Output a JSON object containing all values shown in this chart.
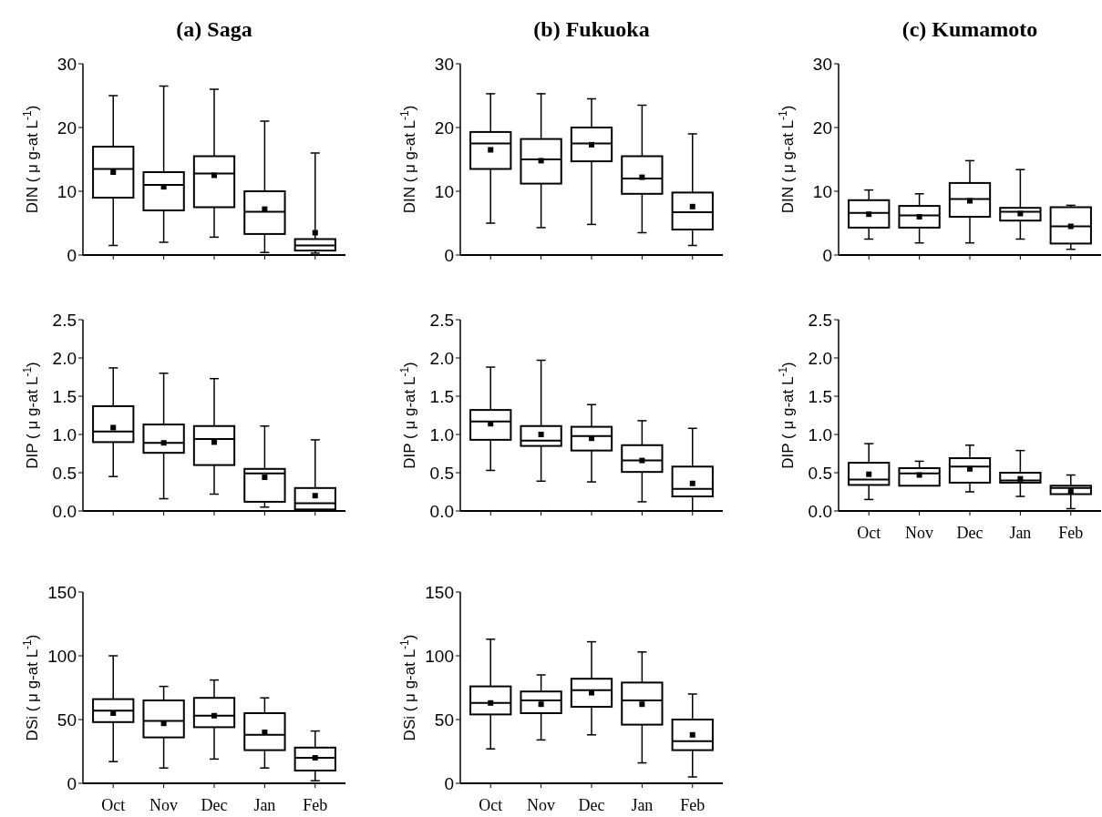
{
  "chart_data": [
    {
      "type": "box",
      "title": "(a) Saga",
      "ylabel": "DIN ( μ g-at L$^{-1}$)",
      "categories": [
        null,
        null,
        null,
        null,
        null
      ],
      "ylim": [
        0,
        30
      ],
      "yticks": [
        0,
        10,
        20,
        30
      ],
      "color": "#000000",
      "boxes": [
        {
          "low": 1.5,
          "q1": 9,
          "median": 13.5,
          "q3": 17,
          "high": 25,
          "mean": 13
        },
        {
          "low": 2,
          "q1": 7,
          "median": 11,
          "q3": 13,
          "high": 26.5,
          "mean": 10.7
        },
        {
          "low": 2.8,
          "q1": 7.5,
          "median": 12.8,
          "q3": 15.5,
          "high": 26,
          "mean": 12.5
        },
        {
          "low": 0.4,
          "q1": 3.3,
          "median": 6.8,
          "q3": 10,
          "high": 21,
          "mean": 7.2
        },
        {
          "low": 0.3,
          "q1": 0.7,
          "median": 1.5,
          "q3": 2.5,
          "high": 16,
          "mean": 3.5
        }
      ]
    },
    {
      "type": "box",
      "title": "(b) Fukuoka",
      "ylabel": "DIN ( μ g-at L$^{-1}$)",
      "categories": [
        null,
        null,
        null,
        null,
        null
      ],
      "ylim": [
        0,
        30
      ],
      "yticks": [
        0,
        10,
        20,
        30
      ],
      "color": "#000000",
      "boxes": [
        {
          "low": 5,
          "q1": 13.5,
          "median": 17.5,
          "q3": 19.3,
          "high": 25.3,
          "mean": 16.5
        },
        {
          "low": 4.3,
          "q1": 11.2,
          "median": 15,
          "q3": 18.2,
          "high": 25.3,
          "mean": 14.8
        },
        {
          "low": 4.8,
          "q1": 14.7,
          "median": 17.5,
          "q3": 20,
          "high": 24.5,
          "mean": 17.3
        },
        {
          "low": 3.5,
          "q1": 9.6,
          "median": 12,
          "q3": 15.5,
          "high": 23.5,
          "mean": 12.2
        },
        {
          "low": 1.5,
          "q1": 4,
          "median": 6.7,
          "q3": 9.8,
          "high": 19,
          "mean": 7.6
        }
      ]
    },
    {
      "type": "box",
      "title": "(c) Kumamoto",
      "ylabel": "DIN ( μ g-at L$^{-1}$)",
      "categories": [
        null,
        null,
        null,
        null,
        null
      ],
      "ylim": [
        0,
        30
      ],
      "yticks": [
        0,
        10,
        20,
        30
      ],
      "color": "#000000",
      "boxes": [
        {
          "low": 2.5,
          "q1": 4.3,
          "median": 6.6,
          "q3": 8.6,
          "high": 10.2,
          "mean": 6.4
        },
        {
          "low": 1.9,
          "q1": 4.3,
          "median": 6.2,
          "q3": 7.7,
          "high": 9.6,
          "mean": 6
        },
        {
          "low": 1.9,
          "q1": 6,
          "median": 8.8,
          "q3": 11.3,
          "high": 14.8,
          "mean": 8.5
        },
        {
          "low": 2.5,
          "q1": 5.4,
          "median": 6.8,
          "q3": 7.4,
          "high": 13.4,
          "mean": 6.5
        },
        {
          "low": 0.9,
          "q1": 1.8,
          "median": 4.5,
          "q3": 7.5,
          "high": 7.8,
          "mean": 4.5
        }
      ]
    },
    {
      "type": "box",
      "ylabel": "DIP ( μ g-at L$^{-1}$)",
      "categories": [
        null,
        null,
        null,
        null,
        null
      ],
      "ylim": [
        0,
        2.5
      ],
      "yticks": [
        {
          "value": 0,
          "label": "0.0"
        },
        {
          "value": 0.5,
          "label": "0.5"
        },
        {
          "value": 1,
          "label": "1.0"
        },
        {
          "value": 1.5,
          "label": "1.5"
        },
        {
          "value": 2,
          "label": "2.0"
        },
        {
          "value": 2.5,
          "label": "2.5"
        }
      ],
      "color": "#000000",
      "boxes": [
        {
          "low": 0.45,
          "q1": 0.9,
          "median": 1.04,
          "q3": 1.37,
          "high": 1.87,
          "mean": 1.09
        },
        {
          "low": 0.16,
          "q1": 0.76,
          "median": 0.89,
          "q3": 1.13,
          "high": 1.8,
          "mean": 0.89
        },
        {
          "low": 0.22,
          "q1": 0.6,
          "median": 0.94,
          "q3": 1.11,
          "high": 1.73,
          "mean": 0.9
        },
        {
          "low": 0.05,
          "q1": 0.12,
          "median": 0.49,
          "q3": 0.55,
          "high": 1.11,
          "mean": 0.44
        },
        {
          "low": 0,
          "q1": 0.02,
          "median": 0.1,
          "q3": 0.3,
          "high": 0.93,
          "mean": 0.2
        }
      ]
    },
    {
      "type": "box",
      "ylabel": "DIP ( μ g-at L$^{-1}$)",
      "categories": [
        null,
        null,
        null,
        null,
        null
      ],
      "ylim": [
        0,
        2.5
      ],
      "yticks": [
        {
          "value": 0,
          "label": "0.0"
        },
        {
          "value": 0.5,
          "label": "0.5"
        },
        {
          "value": 1,
          "label": "1.0"
        },
        {
          "value": 1.5,
          "label": "1.5"
        },
        {
          "value": 2,
          "label": "2.0"
        },
        {
          "value": 2.5,
          "label": "2.5"
        }
      ],
      "color": "#000000",
      "boxes": [
        {
          "low": 0.53,
          "q1": 0.93,
          "median": 1.17,
          "q3": 1.32,
          "high": 1.88,
          "mean": 1.14
        },
        {
          "low": 0.39,
          "q1": 0.85,
          "median": 0.92,
          "q3": 1.11,
          "high": 1.97,
          "mean": 1
        },
        {
          "low": 0.38,
          "q1": 0.79,
          "median": 0.98,
          "q3": 1.1,
          "high": 1.39,
          "mean": 0.95
        },
        {
          "low": 0.12,
          "q1": 0.51,
          "median": 0.66,
          "q3": 0.86,
          "high": 1.18,
          "mean": 0.66
        },
        {
          "low": 0,
          "q1": 0.19,
          "median": 0.29,
          "q3": 0.58,
          "high": 1.08,
          "mean": 0.36
        }
      ]
    },
    {
      "type": "box",
      "ylabel": "DIP ( μ g-at L$^{-1}$)",
      "categories": [
        "Oct",
        "Nov",
        "Dec",
        "Jan",
        "Feb"
      ],
      "ylim": [
        0,
        2.5
      ],
      "yticks": [
        {
          "value": 0,
          "label": "0.0"
        },
        {
          "value": 0.5,
          "label": "0.5"
        },
        {
          "value": 1,
          "label": "1.0"
        },
        {
          "value": 1.5,
          "label": "1.5"
        },
        {
          "value": 2,
          "label": "2.0"
        },
        {
          "value": 2.5,
          "label": "2.5"
        }
      ],
      "color": "#000000",
      "boxes": [
        {
          "low": 0.15,
          "q1": 0.34,
          "median": 0.41,
          "q3": 0.63,
          "high": 0.88,
          "mean": 0.48
        },
        {
          "low": 0.33,
          "q1": 0.33,
          "median": 0.49,
          "q3": 0.56,
          "high": 0.65,
          "mean": 0.47
        },
        {
          "low": 0.25,
          "q1": 0.37,
          "median": 0.58,
          "q3": 0.69,
          "high": 0.86,
          "mean": 0.55
        },
        {
          "low": 0.19,
          "q1": 0.37,
          "median": 0.4,
          "q3": 0.5,
          "high": 0.79,
          "mean": 0.42
        },
        {
          "low": 0.03,
          "q1": 0.22,
          "median": 0.3,
          "q3": 0.33,
          "high": 0.47,
          "mean": 0.26
        }
      ]
    },
    {
      "type": "box",
      "ylabel": "DSi ( μ g-at L$^{-1}$)",
      "categories": [
        "Oct",
        "Nov",
        "Dec",
        "Jan",
        "Feb"
      ],
      "ylim": [
        0,
        150
      ],
      "yticks": [
        0,
        50,
        100,
        150
      ],
      "color": "#000000",
      "boxes": [
        {
          "low": 17,
          "q1": 48,
          "median": 57,
          "q3": 66,
          "high": 100,
          "mean": 55
        },
        {
          "low": 12,
          "q1": 36,
          "median": 49,
          "q3": 65,
          "high": 76,
          "mean": 47
        },
        {
          "low": 19,
          "q1": 44,
          "median": 53,
          "q3": 67,
          "high": 81,
          "mean": 53
        },
        {
          "low": 12,
          "q1": 26,
          "median": 38,
          "q3": 55,
          "high": 67,
          "mean": 40
        },
        {
          "low": 2,
          "q1": 10,
          "median": 20,
          "q3": 28,
          "high": 41,
          "mean": 20
        }
      ]
    },
    {
      "type": "box",
      "ylabel": "DSi ( μ g-at L$^{-1}$)",
      "categories": [
        "Oct",
        "Nov",
        "Dec",
        "Jan",
        "Feb"
      ],
      "ylim": [
        0,
        150
      ],
      "yticks": [
        0,
        50,
        100,
        150
      ],
      "color": "#000000",
      "boxes": [
        {
          "low": 27,
          "q1": 54,
          "median": 63,
          "q3": 76,
          "high": 113,
          "mean": 63
        },
        {
          "low": 34,
          "q1": 55,
          "median": 65,
          "q3": 72,
          "high": 85,
          "mean": 62
        },
        {
          "low": 38,
          "q1": 60,
          "median": 73,
          "q3": 82,
          "high": 111,
          "mean": 71
        },
        {
          "low": 16,
          "q1": 46,
          "median": 65,
          "q3": 79,
          "high": 103,
          "mean": 62
        },
        {
          "low": 5,
          "q1": 26,
          "median": 33,
          "q3": 50,
          "high": 70,
          "mean": 38
        }
      ]
    }
  ]
}
